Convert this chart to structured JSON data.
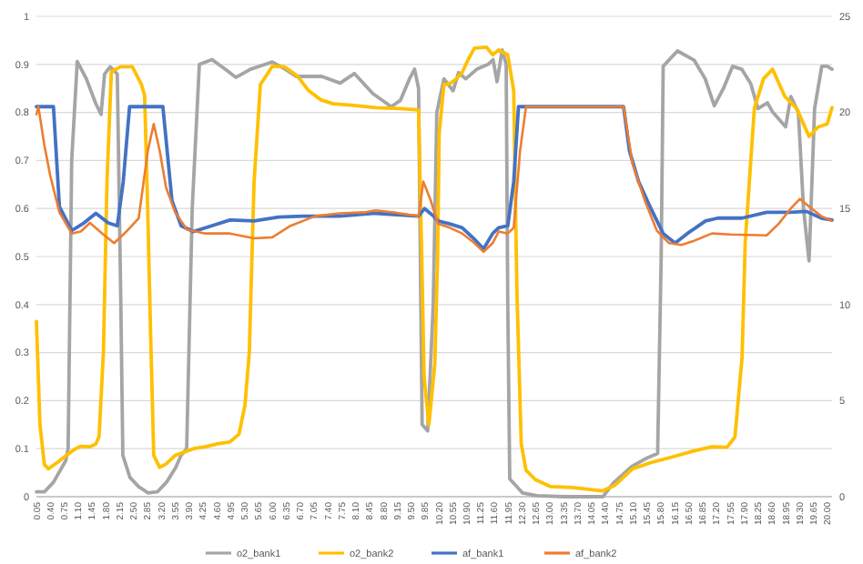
{
  "chart_data": {
    "type": "line",
    "xlim": [
      0.05,
      20.12
    ],
    "xticks": [
      {
        "value": 0.05,
        "label": "0.05"
      },
      {
        "value": 0.4,
        "label": "0.40"
      },
      {
        "value": 0.75,
        "label": "0.75"
      },
      {
        "value": 1.1,
        "label": "1.10"
      },
      {
        "value": 1.45,
        "label": "1.45"
      },
      {
        "value": 1.8,
        "label": "1.80"
      },
      {
        "value": 2.15,
        "label": "2.15"
      },
      {
        "value": 2.5,
        "label": "2.50"
      },
      {
        "value": 2.85,
        "label": "2.85"
      },
      {
        "value": 3.2,
        "label": "3.20"
      },
      {
        "value": 3.55,
        "label": "3.55"
      },
      {
        "value": 3.9,
        "label": "3.90"
      },
      {
        "value": 4.25,
        "label": "4.25"
      },
      {
        "value": 4.6,
        "label": "4.60"
      },
      {
        "value": 4.95,
        "label": "4.95"
      },
      {
        "value": 5.3,
        "label": "5.30"
      },
      {
        "value": 5.65,
        "label": "5.65"
      },
      {
        "value": 6.0,
        "label": "6.00"
      },
      {
        "value": 6.35,
        "label": "6.35"
      },
      {
        "value": 6.7,
        "label": "6.70"
      },
      {
        "value": 7.05,
        "label": "7.05"
      },
      {
        "value": 7.4,
        "label": "7.40"
      },
      {
        "value": 7.75,
        "label": "7.75"
      },
      {
        "value": 8.1,
        "label": "8.10"
      },
      {
        "value": 8.45,
        "label": "8.45"
      },
      {
        "value": 8.8,
        "label": "8.80"
      },
      {
        "value": 9.15,
        "label": "9.15"
      },
      {
        "value": 9.5,
        "label": "9.50"
      },
      {
        "value": 9.85,
        "label": "9.85"
      },
      {
        "value": 10.2,
        "label": "10.20"
      },
      {
        "value": 10.55,
        "label": "10.55"
      },
      {
        "value": 10.9,
        "label": "10.90"
      },
      {
        "value": 11.25,
        "label": "11.25"
      },
      {
        "value": 11.6,
        "label": "11.60"
      },
      {
        "value": 11.95,
        "label": "11.95"
      },
      {
        "value": 12.3,
        "label": "12.30"
      },
      {
        "value": 12.65,
        "label": "12.65"
      },
      {
        "value": 13.0,
        "label": "13.00"
      },
      {
        "value": 13.35,
        "label": "13.35"
      },
      {
        "value": 13.7,
        "label": "13.70"
      },
      {
        "value": 14.05,
        "label": "14.05"
      },
      {
        "value": 14.4,
        "label": "14.40"
      },
      {
        "value": 14.75,
        "label": "14.75"
      },
      {
        "value": 15.1,
        "label": "15.10"
      },
      {
        "value": 15.45,
        "label": "15.45"
      },
      {
        "value": 15.8,
        "label": "15.80"
      },
      {
        "value": 16.15,
        "label": "16.15"
      },
      {
        "value": 16.5,
        "label": "16.50"
      },
      {
        "value": 16.85,
        "label": "16.85"
      },
      {
        "value": 17.2,
        "label": "17.20"
      },
      {
        "value": 17.55,
        "label": "17.55"
      },
      {
        "value": 17.9,
        "label": "17.90"
      },
      {
        "value": 18.25,
        "label": "18.25"
      },
      {
        "value": 18.6,
        "label": "18.60"
      },
      {
        "value": 18.95,
        "label": "18.95"
      },
      {
        "value": 19.3,
        "label": "19.30"
      },
      {
        "value": 19.65,
        "label": "19.65"
      },
      {
        "value": 20.0,
        "label": "20.00"
      }
    ],
    "ylim": [
      0,
      1
    ],
    "yticks": [
      0,
      0.1,
      0.2,
      0.3,
      0.4,
      0.5,
      0.6,
      0.7,
      0.8,
      0.9,
      1
    ],
    "y2lim": [
      0,
      25
    ],
    "y2ticks": [
      0,
      5,
      10,
      15,
      20,
      25
    ],
    "grid": "y",
    "legend": "bottom",
    "line_style": "solid",
    "series": [
      {
        "name": "o2_bank1",
        "color": "#a5a5a5",
        "x": [
          0.05,
          0.25,
          0.48,
          0.79,
          0.85,
          0.94,
          1.08,
          1.31,
          1.54,
          1.68,
          1.77,
          1.91,
          2.09,
          2.18,
          2.23,
          2.41,
          2.64,
          2.87,
          3.1,
          3.33,
          3.56,
          3.7,
          3.84,
          3.98,
          4.16,
          4.48,
          4.81,
          5.08,
          5.45,
          5.82,
          6.0,
          6.33,
          6.6,
          7.25,
          7.71,
          8.07,
          8.54,
          9.0,
          9.23,
          9.46,
          9.59,
          9.69,
          9.76,
          9.78,
          9.92,
          10.06,
          10.15,
          10.33,
          10.56,
          10.7,
          10.88,
          11.16,
          11.44,
          11.57,
          11.67,
          11.8,
          11.9,
          11.94,
          11.99,
          12.31,
          12.68,
          13.37,
          14.06,
          14.34,
          14.61,
          15.07,
          15.44,
          15.72,
          15.81,
          15.86,
          16.22,
          16.64,
          16.92,
          17.15,
          17.38,
          17.61,
          17.84,
          18.07,
          18.25,
          18.49,
          18.62,
          18.95,
          19.08,
          19.27,
          19.4,
          19.54,
          19.68,
          19.86,
          20.0,
          20.12
        ],
        "values": [
          0.01,
          0.01,
          0.03,
          0.075,
          0.1,
          0.7,
          0.906,
          0.87,
          0.82,
          0.796,
          0.88,
          0.895,
          0.88,
          0.4,
          0.086,
          0.04,
          0.02,
          0.008,
          0.01,
          0.03,
          0.06,
          0.086,
          0.1,
          0.6,
          0.9,
          0.91,
          0.89,
          0.873,
          0.89,
          0.9,
          0.905,
          0.89,
          0.875,
          0.875,
          0.861,
          0.881,
          0.839,
          0.812,
          0.825,
          0.87,
          0.89,
          0.85,
          0.3,
          0.15,
          0.137,
          0.4,
          0.8,
          0.87,
          0.845,
          0.883,
          0.87,
          0.89,
          0.9,
          0.91,
          0.864,
          0.93,
          0.9,
          0.4,
          0.037,
          0.008,
          0.002,
          0,
          0,
          0,
          0.029,
          0.063,
          0.08,
          0.09,
          0.5,
          0.896,
          0.928,
          0.909,
          0.87,
          0.814,
          0.85,
          0.896,
          0.89,
          0.86,
          0.808,
          0.82,
          0.801,
          0.77,
          0.833,
          0.8,
          0.6,
          0.491,
          0.808,
          0.896,
          0.896,
          0.89
        ]
      },
      {
        "name": "o2_bank2",
        "color": "#ffc000",
        "x": [
          0.05,
          0.14,
          0.25,
          0.35,
          0.56,
          0.79,
          1.02,
          1.17,
          1.4,
          1.55,
          1.63,
          1.74,
          1.83,
          1.94,
          2.17,
          2.47,
          2.7,
          2.78,
          2.86,
          2.93,
          3.01,
          3.16,
          3.32,
          3.55,
          3.85,
          4.01,
          4.31,
          4.62,
          4.93,
          5.16,
          5.31,
          5.42,
          5.54,
          5.7,
          6.0,
          6.31,
          6.62,
          6.92,
          7.23,
          7.54,
          8.0,
          8.61,
          9.23,
          9.69,
          9.77,
          9.83,
          9.95,
          10.1,
          10.17,
          10.21,
          10.33,
          10.48,
          10.64,
          10.79,
          10.94,
          11.1,
          11.4,
          11.56,
          11.71,
          11.94,
          12.09,
          12.17,
          12.28,
          12.4,
          12.63,
          13.02,
          13.55,
          14.02,
          14.32,
          14.63,
          15.09,
          15.55,
          16.01,
          16.62,
          17.09,
          17.47,
          17.67,
          17.85,
          17.93,
          18.16,
          18.39,
          18.62,
          18.93,
          19.23,
          19.54,
          19.77,
          20.0,
          20.12
        ],
        "values": [
          0.365,
          0.15,
          0.067,
          0.058,
          0.07,
          0.085,
          0.099,
          0.105,
          0.104,
          0.11,
          0.125,
          0.3,
          0.655,
          0.885,
          0.895,
          0.895,
          0.858,
          0.835,
          0.59,
          0.34,
          0.086,
          0.061,
          0.068,
          0.086,
          0.095,
          0.1,
          0.104,
          0.11,
          0.114,
          0.13,
          0.19,
          0.3,
          0.655,
          0.858,
          0.896,
          0.895,
          0.877,
          0.845,
          0.826,
          0.818,
          0.815,
          0.81,
          0.808,
          0.805,
          0.5,
          0.25,
          0.15,
          0.276,
          0.5,
          0.757,
          0.858,
          0.86,
          0.87,
          0.883,
          0.91,
          0.934,
          0.936,
          0.92,
          0.93,
          0.92,
          0.845,
          0.43,
          0.11,
          0.055,
          0.036,
          0.021,
          0.019,
          0.015,
          0.012,
          0.023,
          0.058,
          0.071,
          0.081,
          0.095,
          0.104,
          0.103,
          0.124,
          0.29,
          0.53,
          0.808,
          0.87,
          0.89,
          0.833,
          0.808,
          0.75,
          0.77,
          0.776,
          0.81
        ]
      },
      {
        "name": "af_bank1",
        "color": "#4472c4",
        "axis": "y2",
        "x": [
          0.05,
          0.48,
          0.63,
          0.94,
          1.25,
          1.55,
          1.86,
          2.09,
          2.24,
          2.4,
          3.24,
          3.47,
          3.7,
          4.01,
          4.47,
          4.93,
          5.54,
          6.16,
          6.77,
          7.69,
          8.61,
          9.69,
          9.84,
          10.07,
          10.18,
          10.48,
          10.79,
          11.1,
          11.33,
          11.56,
          11.71,
          11.94,
          12.09,
          12.21,
          14.86,
          15.01,
          15.24,
          15.55,
          15.86,
          16.16,
          16.47,
          16.93,
          17.24,
          17.85,
          18.47,
          19.08,
          19.47,
          19.85,
          20.12
        ],
        "values": [
          20.3,
          20.3,
          15.1,
          13.85,
          14.25,
          14.75,
          14.25,
          14.1,
          16.4,
          20.3,
          20.3,
          15.4,
          14.1,
          13.8,
          14.1,
          14.4,
          14.35,
          14.55,
          14.6,
          14.6,
          14.75,
          14.6,
          15.0,
          14.6,
          14.35,
          14.2,
          14.0,
          13.4,
          12.9,
          13.7,
          14.0,
          14.1,
          16.4,
          20.3,
          20.3,
          18.0,
          16.4,
          15.0,
          13.7,
          13.2,
          13.7,
          14.35,
          14.5,
          14.5,
          14.8,
          14.8,
          14.85,
          14.5,
          14.4
        ]
      },
      {
        "name": "af_bank2",
        "color": "#ed7d31",
        "axis": "y2",
        "x": [
          0.05,
          0.1,
          0.25,
          0.4,
          0.63,
          0.94,
          1.17,
          1.4,
          1.71,
          2.01,
          2.32,
          2.63,
          2.86,
          3.01,
          3.16,
          3.32,
          3.55,
          3.85,
          4.31,
          4.93,
          5.54,
          6.0,
          6.46,
          7.08,
          7.69,
          8.31,
          8.61,
          9.07,
          9.69,
          9.81,
          10.0,
          10.18,
          10.48,
          10.79,
          11.1,
          11.33,
          11.56,
          11.71,
          11.94,
          12.09,
          12.25,
          12.4,
          14.86,
          15.09,
          15.4,
          15.7,
          16.01,
          16.32,
          16.62,
          17.09,
          17.55,
          18.47,
          18.77,
          19.08,
          19.31,
          19.54,
          19.85,
          20.12
        ],
        "values": [
          19.9,
          20.3,
          18.3,
          16.7,
          14.8,
          13.7,
          13.8,
          14.25,
          13.7,
          13.2,
          13.8,
          14.5,
          18.0,
          19.4,
          18.0,
          16.1,
          14.8,
          13.9,
          13.7,
          13.7,
          13.45,
          13.5,
          14.1,
          14.6,
          14.75,
          14.8,
          14.9,
          14.8,
          14.6,
          16.4,
          15.4,
          14.2,
          14.0,
          13.7,
          13.2,
          12.75,
          13.2,
          13.8,
          13.7,
          14.0,
          18.0,
          20.3,
          20.3,
          17.3,
          15.4,
          13.85,
          13.2,
          13.1,
          13.3,
          13.7,
          13.65,
          13.6,
          14.2,
          15.0,
          15.5,
          15.1,
          14.6,
          14.35
        ]
      }
    ]
  }
}
